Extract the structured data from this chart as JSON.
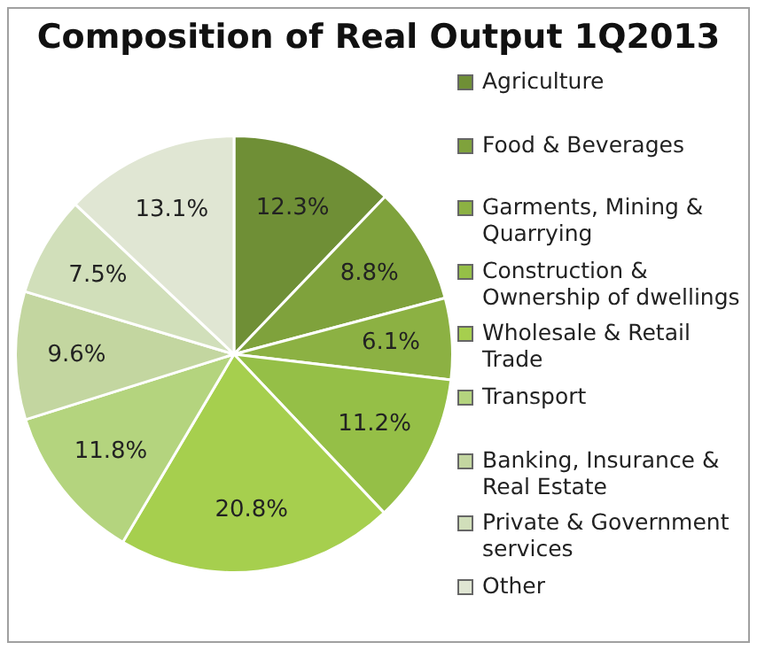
{
  "chart_data": {
    "type": "pie",
    "title": "Composition of Real Output 1Q2013",
    "categories": [
      "Agriculture",
      "Food & Beverages",
      "Garments, Mining & Quarrying",
      "Construction & Ownership of dwellings",
      "Wholesale & Retail Trade",
      "Transport",
      "Banking, Insurance & Real Estate",
      "Private & Government services",
      "Other"
    ],
    "values": [
      12.3,
      8.8,
      6.1,
      11.2,
      20.8,
      11.8,
      9.6,
      7.5,
      13.1
    ],
    "value_labels": [
      "12.3%",
      "8.8%",
      "6.1%",
      "11.2%",
      "20.8%",
      "11.8%",
      "9.6%",
      "7.5%",
      "13.1%"
    ],
    "colors": [
      "#6f8f36",
      "#7fa23c",
      "#8cb143",
      "#95bf47",
      "#a6cf4e",
      "#b4d47e",
      "#c3d6a0",
      "#d1dfba",
      "#e0e6d3"
    ],
    "legend": "right"
  }
}
